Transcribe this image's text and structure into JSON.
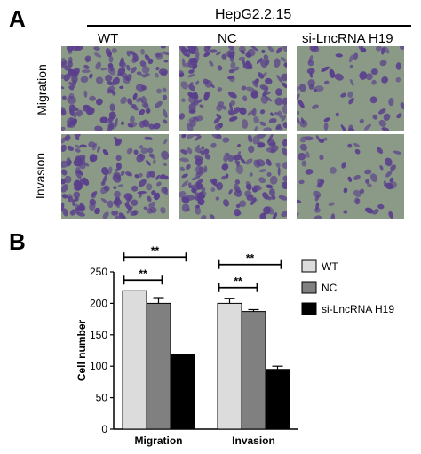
{
  "panel_a": {
    "letter": "A",
    "cell_line": "HepG2.2.15",
    "columns": [
      "WT",
      "NC",
      "si-LncRNA H19"
    ],
    "rows": [
      "Migration",
      "Invasion"
    ]
  },
  "panel_b": {
    "letter": "B",
    "significance_label": "**"
  },
  "colors": {
    "wt": "#dcdcdc",
    "nc": "#808080",
    "si": "#000000",
    "stain_bg": "#8a9a86",
    "stain_cell": "#5a3f8c"
  },
  "chart_data": {
    "type": "bar",
    "categories": [
      "Migration",
      "Invasion"
    ],
    "series": [
      {
        "name": "WT",
        "values": [
          220,
          200
        ],
        "errors": [
          0,
          8
        ]
      },
      {
        "name": "NC",
        "values": [
          200,
          187
        ],
        "errors": [
          9,
          3
        ]
      },
      {
        "name": "si-LncRNA H19",
        "values": [
          119,
          95
        ],
        "errors": [
          0,
          5
        ]
      }
    ],
    "ylabel": "Cell number",
    "xlabel": "",
    "ylim": [
      0,
      250
    ],
    "yticks": [
      0,
      50,
      100,
      150,
      200,
      250
    ],
    "legend_position": "top-right"
  }
}
